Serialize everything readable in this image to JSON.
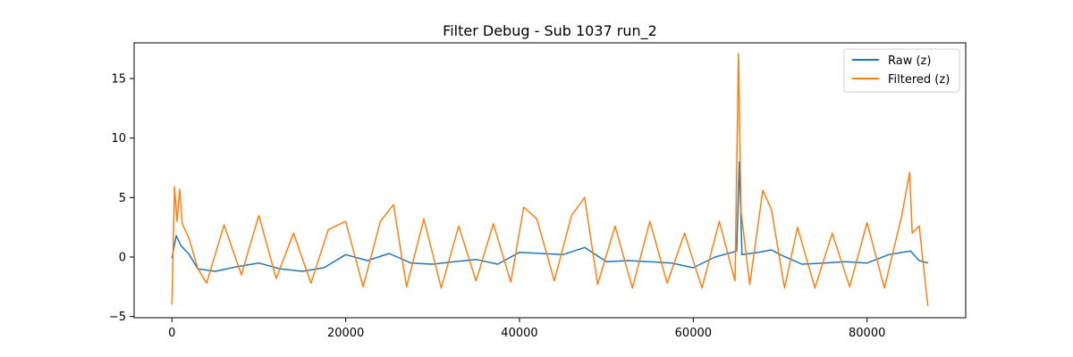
{
  "chart_data": {
    "type": "line",
    "title": "Filter Debug - Sub 1037 run_2",
    "xlabel": "",
    "ylabel": "",
    "xlim": [
      -4350,
      91350
    ],
    "ylim": [
      -5.1,
      18.0
    ],
    "xticks": [
      0,
      20000,
      40000,
      60000,
      80000
    ],
    "xtick_labels": [
      "0",
      "20000",
      "40000",
      "60000",
      "80000"
    ],
    "yticks": [
      -5,
      0,
      5,
      10,
      15
    ],
    "ytick_labels": [
      "−5",
      "0",
      "5",
      "10",
      "15"
    ],
    "grid": false,
    "legend_position": "top-right",
    "series": [
      {
        "name": "Raw (z)",
        "color": "#1f77b4",
        "x": [
          0,
          500,
          1000,
          2000,
          3000,
          5000,
          7500,
          10000,
          12500,
          15000,
          17500,
          20000,
          22500,
          25000,
          27500,
          30000,
          32500,
          35000,
          37500,
          40000,
          42500,
          45000,
          47500,
          50000,
          52500,
          55000,
          57500,
          60000,
          62500,
          65000,
          65300,
          65600,
          67500,
          69000,
          70000,
          72500,
          75000,
          77500,
          80000,
          82500,
          85000,
          86000,
          87000
        ],
        "y": [
          -0.1,
          1.8,
          1.0,
          0.2,
          -1.0,
          -1.2,
          -0.8,
          -0.5,
          -1.0,
          -1.2,
          -0.9,
          0.2,
          -0.3,
          0.3,
          -0.5,
          -0.6,
          -0.4,
          -0.2,
          -0.6,
          0.4,
          0.3,
          0.2,
          0.8,
          -0.4,
          -0.3,
          -0.4,
          -0.5,
          -0.9,
          0.0,
          0.5,
          8.0,
          0.2,
          0.4,
          0.6,
          0.2,
          -0.6,
          -0.5,
          -0.4,
          -0.5,
          0.2,
          0.5,
          -0.3,
          -0.5
        ]
      },
      {
        "name": "Filtered (z)",
        "color": "#ff7f0e",
        "x": [
          0,
          300,
          600,
          900,
          1200,
          2000,
          3000,
          4000,
          6000,
          8000,
          10000,
          12000,
          14000,
          16000,
          18000,
          20000,
          22000,
          24000,
          25500,
          27000,
          29000,
          31000,
          33000,
          35000,
          37000,
          39000,
          40500,
          42000,
          44000,
          46000,
          47500,
          49000,
          51000,
          53000,
          55000,
          57000,
          59000,
          61000,
          63000,
          64800,
          65200,
          65500,
          66500,
          68000,
          69000,
          70500,
          72000,
          74000,
          76000,
          78000,
          80000,
          82000,
          84000,
          84900,
          85200,
          86000,
          87000
        ],
        "y": [
          -4.0,
          5.9,
          3.0,
          5.7,
          2.8,
          1.5,
          -1.0,
          -2.2,
          2.7,
          -1.5,
          3.5,
          -1.8,
          2.0,
          -2.2,
          2.3,
          3.0,
          -2.5,
          3.0,
          4.4,
          -2.5,
          3.2,
          -2.6,
          2.6,
          -2.0,
          2.8,
          -2.1,
          4.2,
          3.2,
          -2.0,
          3.5,
          5.0,
          -2.3,
          2.6,
          -2.6,
          3.0,
          -2.2,
          2.0,
          -2.6,
          3.0,
          -2.0,
          17.1,
          3.8,
          -2.3,
          5.6,
          4.0,
          -2.6,
          2.5,
          -2.6,
          2.0,
          -2.5,
          2.9,
          -2.6,
          3.5,
          7.1,
          2.0,
          2.6,
          -4.1
        ]
      }
    ]
  }
}
